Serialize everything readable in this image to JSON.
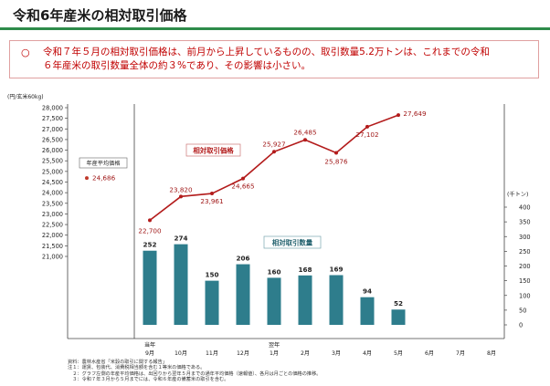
{
  "header": {
    "title": "令和6年産米の相対取引価格"
  },
  "summary": {
    "bullet": "○",
    "line1": "令和７年５月の相対取引価格は、前月から上昇しているものの、取引数量5.2万トンは、これまでの令和",
    "line2": "６年産米の取引数量全体の約３%であり、その影響は小さい。"
  },
  "chart_data": {
    "type": "bar+line",
    "categories": [
      {
        "top": "当年",
        "bottom": "9月"
      },
      {
        "top": "",
        "bottom": "10月"
      },
      {
        "top": "",
        "bottom": "11月"
      },
      {
        "top": "",
        "bottom": "12月"
      },
      {
        "top": "翌年",
        "bottom": "1月"
      },
      {
        "top": "",
        "bottom": "2月"
      },
      {
        "top": "",
        "bottom": "3月"
      },
      {
        "top": "",
        "bottom": "4月"
      },
      {
        "top": "",
        "bottom": "5月"
      },
      {
        "top": "",
        "bottom": "6月"
      },
      {
        "top": "",
        "bottom": "7月"
      },
      {
        "top": "",
        "bottom": "8月"
      }
    ],
    "price": {
      "name": "相対取引価格",
      "values": [
        22700,
        23820,
        23961,
        24665,
        25927,
        26485,
        25876,
        27102,
        27649
      ],
      "labels": [
        "22,700",
        "23,820",
        "23,961",
        "24,665",
        "25,927",
        "26,485",
        "25,876",
        "27,102",
        "27,649"
      ]
    },
    "volume": {
      "name": "相対取引数量",
      "values": [
        252,
        274,
        150,
        206,
        160,
        168,
        169,
        94,
        52
      ],
      "labels": [
        "252",
        "274",
        "150",
        "206",
        "160",
        "168",
        "169",
        "94",
        "52"
      ]
    },
    "annual_average": {
      "label": "年産平均価格",
      "value": 24686,
      "value_label": "24,686"
    },
    "left_axis": {
      "unit": "(円/玄米60kg)",
      "range": [
        20500,
        28000
      ],
      "ticks": [
        21000,
        21500,
        22000,
        22500,
        23000,
        23500,
        24000,
        24500,
        25000,
        25500,
        26000,
        26500,
        27000,
        27500,
        28000
      ],
      "tick_labels": [
        "21,000",
        "21,500",
        "22,000",
        "22,500",
        "23,000",
        "23,500",
        "24,000",
        "24,500",
        "25,000",
        "25,500",
        "26,000",
        "26,500",
        "27,000",
        "27,500",
        "28,000"
      ]
    },
    "right_axis": {
      "unit": "(千トン)",
      "range": [
        0,
        400
      ],
      "ticks": [
        0,
        50,
        100,
        150,
        200,
        250,
        300,
        350,
        400
      ],
      "tick_labels": [
        "0",
        "50",
        "100",
        "150",
        "200",
        "250",
        "300",
        "350",
        "400"
      ]
    },
    "colors": {
      "price_line": "#b31b1b",
      "bar": "#2e7d8c",
      "avg_marker": "#c0392b"
    }
  },
  "footnotes": [
    "資料：農林水産省「米穀の取引に関する報告」",
    "注１：運賃、包装代、消費税相当額を含む１等米の価格である。",
    "　２：グラフ左側の年産平均価格は、出回りから翌年５月までの通年平均価格（速報値）、各月は月ごとの価格の推移。",
    "　３：令和７年３月から５月までには、令和６年産の備蓄米の取引を含む。"
  ]
}
